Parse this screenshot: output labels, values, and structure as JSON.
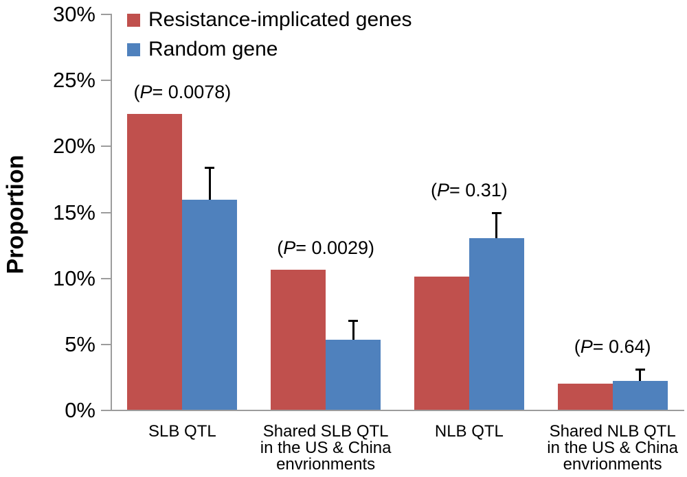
{
  "chart_data": {
    "type": "bar",
    "title": "",
    "ylabel": "Proportion",
    "xlabel": "",
    "ylim": [
      0,
      30
    ],
    "ytick_values": [
      0,
      5,
      10,
      15,
      20,
      25,
      30
    ],
    "ytick_labels": [
      "0%",
      "5%",
      "10%",
      "15%",
      "20%",
      "25%",
      "30%"
    ],
    "grid": false,
    "legend_position": "top-left",
    "categories": [
      [
        "SLB QTL"
      ],
      [
        "Shared SLB QTL",
        "in the US & China",
        "envrionments"
      ],
      [
        "NLB QTL"
      ],
      [
        "Shared NLB QTL",
        "in the US & China",
        "envrionments"
      ]
    ],
    "series": [
      {
        "name": "Resistance-implicated genes",
        "color": "#C0504D",
        "values": [
          22.4,
          10.6,
          10.1,
          2.0
        ]
      },
      {
        "name": "Random gene",
        "color": "#4F81BD",
        "values": [
          15.9,
          5.3,
          13.0,
          2.2
        ],
        "error_up": [
          2.5,
          1.5,
          2.0,
          0.9
        ]
      }
    ],
    "p_value_labels": [
      "(P= 0.0078)",
      "(P= 0.0029)",
      "(P= 0.31)",
      "(P= 0.64)"
    ]
  },
  "colors": {
    "resistance_bar": "#C0504D",
    "random_bar": "#4F81BD",
    "axis": "#9c9c9c",
    "error_bar": "#000000",
    "text": "#000000",
    "background": "#ffffff"
  }
}
